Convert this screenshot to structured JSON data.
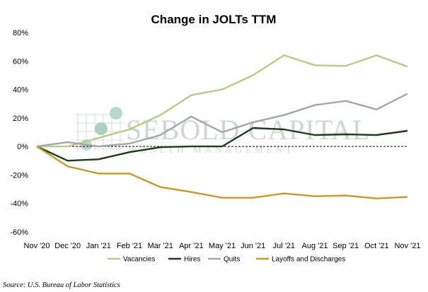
{
  "chart_data": {
    "type": "line",
    "title": "Change in JOLTs TTM",
    "categories": [
      "Nov '20",
      "Dec '20",
      "Jan '21",
      "Feb '21",
      "Mar '21",
      "Apr '21",
      "May '21",
      "Jun '21",
      "Jul '21",
      "Aug '21",
      "Sep '21",
      "Oct '21",
      "Nov '21"
    ],
    "yticks": [
      "80%",
      "60%",
      "40%",
      "20%",
      "0%",
      "-20%",
      "-40%",
      "-60%"
    ],
    "ylim": [
      -0.6,
      0.8
    ],
    "reference_line": {
      "y": 0,
      "style": "dashed"
    },
    "legend_position": "bottom",
    "grid": false,
    "series": [
      {
        "name": "Vacancies",
        "color": "#b7c98b",
        "values": [
          0.0,
          0.0,
          0.06,
          0.12,
          0.22,
          0.36,
          0.4,
          0.5,
          0.64,
          0.57,
          0.565,
          0.64,
          0.56
        ]
      },
      {
        "name": "Hires",
        "color": "#1f3a1f",
        "values": [
          0.0,
          -0.1,
          -0.09,
          -0.04,
          -0.005,
          0.0,
          0.0,
          0.13,
          0.12,
          0.08,
          0.085,
          0.08,
          0.11
        ]
      },
      {
        "name": "Quits",
        "color": "#a6a6a6",
        "values": [
          0.0,
          0.03,
          0.0,
          0.02,
          0.08,
          0.21,
          0.1,
          0.17,
          0.22,
          0.29,
          0.32,
          0.26,
          0.37
        ]
      },
      {
        "name": "Layoffs and Discharges",
        "color": "#c49a2c",
        "values": [
          0.0,
          -0.14,
          -0.19,
          -0.19,
          -0.285,
          -0.32,
          -0.36,
          -0.36,
          -0.33,
          -0.35,
          -0.345,
          -0.365,
          -0.355
        ]
      }
    ]
  },
  "source": "Source: U.S. Bureau of Labor Statistics",
  "watermark": {
    "line1": "SEBOLD CAPITAL",
    "line2": "WEALTH MANAGEMENT",
    "color": "#cfd6d3",
    "accent": "#a8cfc3"
  }
}
